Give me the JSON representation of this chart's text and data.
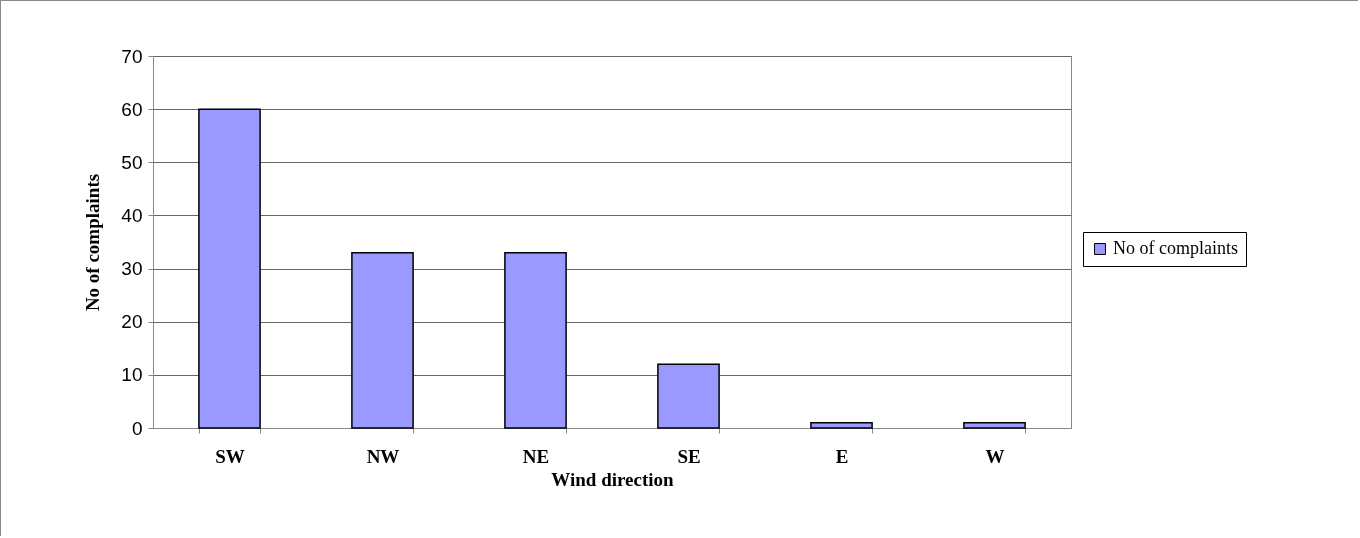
{
  "chart_data": {
    "type": "bar",
    "xlabel": "Wind direction",
    "ylabel": "No of complaints",
    "categories": [
      "SW",
      "NW",
      "NE",
      "SE",
      "E",
      "W"
    ],
    "series": [
      {
        "name": "No of complaints",
        "color": "#9999ff",
        "values": [
          60,
          33,
          33,
          12,
          1,
          1
        ]
      }
    ],
    "ylim": [
      0,
      70
    ],
    "yticks": [
      0,
      10,
      20,
      30,
      40,
      50,
      60,
      70
    ],
    "grid": "y",
    "legend": "right"
  }
}
